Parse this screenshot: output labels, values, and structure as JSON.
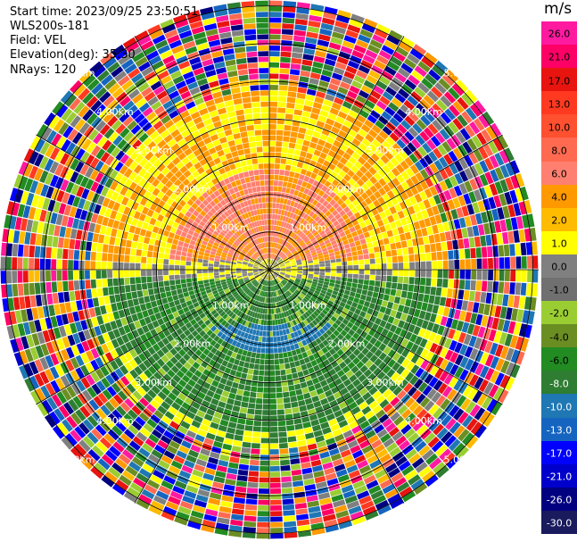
{
  "info": {
    "start_time": "Start time: 2023/09/25 23:50:51",
    "instrument": "WLS200s-181",
    "field": "Field: VEL",
    "elevation": "Elevation(deg): 35.30",
    "nrays": "NRays: 120"
  },
  "ring_labels": [
    "1.00km",
    "2.00km",
    "3.00km",
    "4.00km",
    "5.00km"
  ],
  "colorbar": {
    "units": "m/s",
    "ticks": [
      "26.0",
      "21.0",
      "17.0",
      "13.0",
      "10.0",
      "8.0",
      "6.0",
      "4.0",
      "2.0",
      "1.0",
      "0.0",
      "-1.0",
      "-2.0",
      "-4.0",
      "-6.0",
      "-8.0",
      "-10.0",
      "-13.0",
      "-17.0",
      "-21.0",
      "-26.0",
      "-30.0"
    ],
    "colors": [
      "#ff1aa0",
      "#ff0066",
      "#e8140f",
      "#ff3a20",
      "#ff5030",
      "#ff6a50",
      "#ff8070",
      "#ff9900",
      "#ffbb00",
      "#ffff00",
      "#808080",
      "#707070",
      "#9acd32",
      "#6b8e23",
      "#228b22",
      "#2e7d32",
      "#1f77b4",
      "#1565c0",
      "#0000ff",
      "#0000cd",
      "#000080",
      "#1a1a5e"
    ]
  }
}
